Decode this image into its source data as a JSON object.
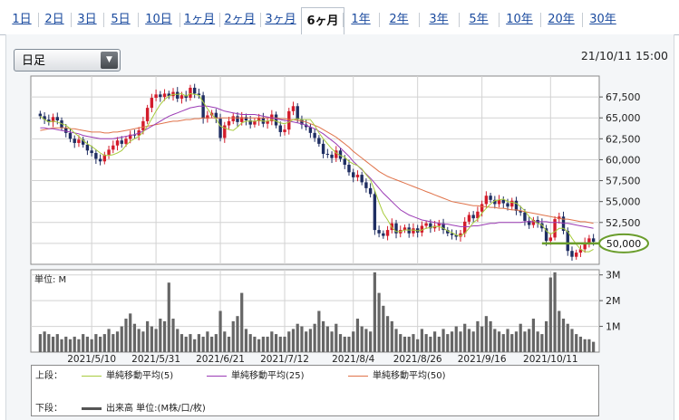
{
  "tabs": [
    "1日",
    "2日",
    "3日",
    "5日",
    "10日",
    "1ヶ月",
    "2ヶ月",
    "3ヶ月",
    "6ヶ月",
    "1年",
    "2年",
    "3年",
    "5年",
    "10年",
    "20年",
    "30年"
  ],
  "active_tab": "6ヶ月",
  "interval_select": "日足",
  "timestamp": "21/10/11 15:00",
  "callout_price": "50,000",
  "legend": {
    "upper_label": "上段：",
    "lower_label": "下段：",
    "ma5": "単純移動平均(5)",
    "ma25": "単純移動平均(25)",
    "ma50": "単純移動平均(50)",
    "volume": "出来高 単位:(M株/口/枚)",
    "unit_label": "単位: M"
  },
  "colors": {
    "up": "#d31c2b",
    "down": "#1f2e62",
    "ma5": "#a8cc3e",
    "ma25": "#9b3bb5",
    "ma50": "#e0734a",
    "volume": "#666666",
    "callout": "#6a9d2c"
  },
  "chart_data": [
    {
      "type": "candlestick",
      "x_tick_labels": [
        "2021/5/10",
        "2021/5/31",
        "2021/6/21",
        "2021/7/12",
        "2021/8/4",
        "2021/8/26",
        "2021/9/16",
        "2021/10/11"
      ],
      "x_tick_index": [
        12,
        27,
        42,
        57,
        73,
        88,
        103,
        119
      ],
      "y_ticks": [
        50000,
        52500,
        55000,
        57500,
        60000,
        62500,
        65000,
        67500
      ],
      "y_tick_labels": [
        "50,000",
        "52,500",
        "55,000",
        "57,500",
        "60,000",
        "62,500",
        "65,000",
        "67,500"
      ],
      "ylim": [
        47500,
        70000
      ],
      "close": [
        65200,
        64800,
        64500,
        65100,
        64700,
        63800,
        63200,
        62500,
        62000,
        62400,
        61800,
        61100,
        60800,
        60100,
        59800,
        60600,
        61200,
        61700,
        62300,
        61900,
        62500,
        63000,
        62900,
        63500,
        64600,
        66200,
        67400,
        67800,
        67500,
        67900,
        67600,
        68100,
        67300,
        67700,
        67400,
        68600,
        67900,
        67700,
        64900,
        65300,
        65600,
        64900,
        62600,
        64100,
        64600,
        65200,
        64500,
        65100,
        64700,
        64200,
        64600,
        65000,
        64300,
        64600,
        65400,
        64100,
        63300,
        63600,
        65800,
        66400,
        64800,
        64200,
        63900,
        63200,
        62600,
        61900,
        60700,
        60600,
        60200,
        61100,
        60100,
        59400,
        58500,
        57900,
        58200,
        57300,
        56600,
        55900,
        51600,
        51200,
        50900,
        51600,
        52400,
        51200,
        51600,
        51900,
        51200,
        51800,
        51300,
        52100,
        52400,
        51800,
        52100,
        52400,
        51600,
        51200,
        51000,
        50800,
        51200,
        52600,
        53400,
        53000,
        53800,
        54700,
        55700,
        55200,
        54700,
        55200,
        54800,
        54400,
        55100,
        53900,
        53700,
        52700,
        52200,
        52800,
        52400,
        51800,
        50300,
        50700,
        52900,
        53200,
        51500,
        49100,
        48400,
        48900,
        49300,
        50100,
        50600,
        50200
      ],
      "ma5": [
        65200,
        64800,
        64500,
        64600,
        64500,
        64300,
        64100,
        63700,
        63200,
        62800,
        62300,
        61900,
        61600,
        61200,
        60800,
        60500,
        60500,
        60600,
        60800,
        61100,
        61700,
        62200,
        62500,
        62800,
        63300,
        64000,
        64900,
        65800,
        66600,
        67200,
        67600,
        67800,
        67800,
        67900,
        67600,
        67900,
        67800,
        67700,
        66900,
        66100,
        65400,
        64900,
        64000,
        63800,
        63600,
        63500,
        63900,
        64400,
        64600,
        64600,
        64600,
        64700,
        64600,
        64600,
        64800,
        64600,
        64400,
        64300,
        64500,
        64800,
        64900,
        64800,
        64800,
        64800,
        64100,
        63200,
        62500,
        61900,
        61300,
        60800,
        60500,
        60300,
        59800,
        59500,
        59300,
        58900,
        58200,
        57600,
        56300,
        54900,
        53600,
        52800,
        51900,
        51400,
        51400,
        51600,
        51600,
        51600,
        51500,
        51600,
        51800,
        51900,
        52000,
        52000,
        51800,
        51500,
        51300,
        51000,
        50900,
        51200,
        51800,
        52500,
        52900,
        53600,
        54200,
        54700,
        55100,
        55200,
        55300,
        55000,
        54900,
        54800,
        54400,
        53900,
        53200,
        52700,
        52400,
        52200,
        51500,
        51100,
        51400,
        51800,
        51800,
        51400,
        50600,
        49900,
        49300,
        49000,
        49000,
        49300
      ],
      "ma25": [
        63800,
        63800,
        63700,
        63700,
        63600,
        63500,
        63400,
        63300,
        63200,
        63100,
        62900,
        62800,
        62700,
        62600,
        62500,
        62500,
        62500,
        62500,
        62600,
        62700,
        62800,
        62900,
        63000,
        63200,
        63400,
        63700,
        64000,
        64300,
        64600,
        64900,
        65200,
        65400,
        65600,
        65800,
        66000,
        66200,
        66300,
        66400,
        66400,
        66400,
        66300,
        66200,
        66000,
        65800,
        65700,
        65600,
        65500,
        65400,
        65400,
        65400,
        65400,
        65300,
        65200,
        65100,
        65000,
        64900,
        64800,
        64700,
        64600,
        64500,
        64400,
        64300,
        64100,
        63900,
        63700,
        63400,
        63100,
        62700,
        62300,
        61900,
        61400,
        60900,
        60400,
        59800,
        59300,
        58800,
        58300,
        57800,
        57200,
        56600,
        56000,
        55500,
        55000,
        54500,
        54000,
        53700,
        53400,
        53200,
        53000,
        52800,
        52700,
        52600,
        52500,
        52400,
        52300,
        52300,
        52200,
        52100,
        52000,
        52000,
        52000,
        52100,
        52100,
        52200,
        52300,
        52400,
        52400,
        52500,
        52500,
        52500,
        52500,
        52500,
        52500,
        52600,
        52600,
        52600,
        52600,
        52600,
        52600,
        52500,
        52500,
        52500,
        52400,
        52400,
        52300,
        52200,
        52100,
        52000,
        51900,
        51800
      ],
      "ma50": [
        63500,
        63600,
        63700,
        63800,
        63800,
        63800,
        63800,
        63700,
        63700,
        63600,
        63500,
        63400,
        63300,
        63300,
        63300,
        63200,
        63200,
        63300,
        63300,
        63400,
        63500,
        63600,
        63700,
        63800,
        63900,
        64000,
        64100,
        64200,
        64300,
        64400,
        64500,
        64600,
        64600,
        64700,
        64800,
        64800,
        64900,
        64900,
        65000,
        65000,
        65000,
        65000,
        65000,
        65000,
        65000,
        65000,
        65000,
        65000,
        65000,
        65000,
        65000,
        65000,
        65000,
        65000,
        65000,
        65000,
        64900,
        64900,
        64800,
        64800,
        64700,
        64600,
        64500,
        64300,
        64100,
        63900,
        63600,
        63300,
        63000,
        62700,
        62300,
        61900,
        61500,
        61000,
        60600,
        60200,
        59800,
        59400,
        59000,
        58600,
        58300,
        58000,
        57800,
        57600,
        57400,
        57200,
        57000,
        56800,
        56600,
        56400,
        56200,
        56000,
        55800,
        55600,
        55400,
        55200,
        55000,
        54900,
        54800,
        54700,
        54600,
        54500,
        54500,
        54400,
        54400,
        54300,
        54300,
        54200,
        54200,
        54100,
        54000,
        54000,
        53900,
        53800,
        53700,
        53600,
        53500,
        53400,
        53300,
        53200,
        53100,
        53000,
        52900,
        52900,
        52800,
        52700,
        52600,
        52600,
        52500,
        52400
      ],
      "callout_level": 50000
    },
    {
      "type": "bar",
      "name_unit": "単位: M",
      "y_ticks": [
        1,
        2,
        3
      ],
      "y_tick_labels": [
        "1M",
        "2M",
        "3M"
      ],
      "ylim": [
        0,
        3.2
      ],
      "values": [
        0.7,
        0.8,
        0.7,
        0.6,
        0.7,
        0.5,
        0.6,
        0.5,
        0.6,
        0.5,
        0.7,
        0.6,
        0.5,
        0.7,
        0.6,
        0.7,
        0.9,
        0.7,
        0.8,
        1.0,
        1.3,
        1.5,
        1.1,
        0.9,
        0.8,
        1.2,
        1.0,
        0.9,
        1.3,
        1.2,
        2.7,
        1.3,
        0.9,
        0.7,
        0.6,
        0.7,
        0.5,
        0.7,
        0.6,
        0.8,
        0.6,
        0.7,
        1.6,
        0.8,
        0.6,
        1.2,
        1.4,
        2.3,
        0.9,
        0.7,
        0.6,
        0.5,
        0.6,
        0.6,
        0.8,
        0.7,
        0.6,
        0.6,
        0.8,
        0.9,
        1.1,
        1.0,
        0.8,
        0.9,
        1.1,
        1.6,
        1.2,
        1.0,
        0.8,
        1.1,
        0.7,
        0.6,
        0.6,
        0.8,
        1.3,
        1.0,
        0.9,
        0.8,
        3.1,
        2.3,
        1.8,
        1.4,
        1.2,
        0.9,
        0.7,
        0.6,
        0.6,
        0.7,
        0.5,
        0.9,
        0.7,
        0.6,
        0.8,
        0.6,
        0.9,
        0.7,
        0.8,
        1.0,
        0.8,
        1.1,
        0.9,
        0.8,
        1.2,
        1.0,
        1.4,
        1.2,
        0.9,
        0.8,
        0.7,
        0.9,
        0.7,
        0.8,
        1.1,
        0.8,
        0.9,
        1.3,
        0.8,
        0.7,
        1.2,
        2.9,
        3.1,
        1.6,
        1.3,
        1.1,
        0.9,
        0.7,
        0.6,
        0.5,
        0.5,
        0.4
      ]
    }
  ]
}
